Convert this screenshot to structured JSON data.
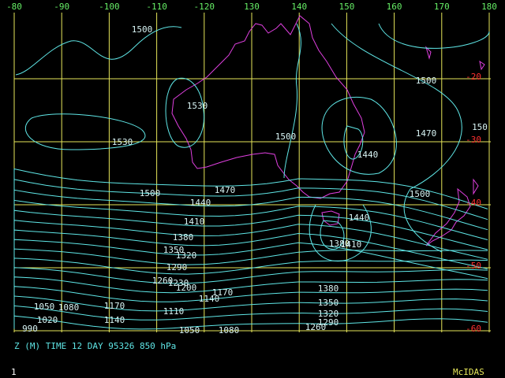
{
  "map": {
    "longitude_labels": [
      "-80",
      "-90",
      "-100",
      "-110",
      "-120",
      "130",
      "140",
      "150",
      "160",
      "170",
      "180"
    ],
    "latitude_labels": [
      "-20",
      "-30",
      "-40",
      "-50",
      "-60"
    ],
    "contour_labels": [
      "1500",
      "1530",
      "1530",
      "1500",
      "1470",
      "1500",
      "1440",
      "150",
      "1500",
      "1470",
      "1440",
      "1410",
      "1380",
      "1350",
      "1320",
      "1290",
      "1260",
      "1230",
      "1200",
      "1170",
      "1140",
      "1110",
      "1170",
      "1140",
      "1080",
      "1050",
      "1020",
      "990",
      "1050",
      "1080",
      "1500",
      "1440",
      "1380",
      "1410",
      "1380",
      "1350",
      "1320",
      "1290",
      "1260"
    ],
    "caption": "Z (M) TIME 12 DAY 95326 850 hPa",
    "frame_number": "1",
    "brand": "McIDAS"
  }
}
